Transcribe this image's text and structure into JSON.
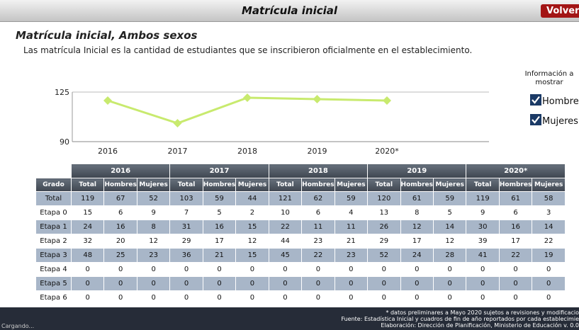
{
  "header": {
    "title": "Matrícula inicial",
    "back": "Volver"
  },
  "heading": "Matrícula inicial, Ambos sexos",
  "description": "Las matrícula Inicial es la cantidad de estudiantes que se inscribieron oficialmente en el establecimiento.",
  "chart_data": {
    "type": "line",
    "categories": [
      "2016",
      "2017",
      "2018",
      "2019",
      "2020*"
    ],
    "values": [
      119,
      103,
      121,
      120,
      119
    ],
    "color": "#c8ea6e",
    "ylim": [
      90,
      125
    ],
    "yticks": [
      90,
      125
    ],
    "grid": true
  },
  "controls": {
    "title": "Información a mostrar",
    "options": [
      {
        "label": "Hombres",
        "checked": true
      },
      {
        "label": "Mujeres",
        "checked": true
      }
    ]
  },
  "table": {
    "grado": "Grado",
    "years": [
      "2016",
      "2017",
      "2018",
      "2019",
      "2020*"
    ],
    "subheaders": [
      "Total",
      "Hombres",
      "Mujeres"
    ],
    "rows": [
      {
        "label": "Total",
        "values": [
          119,
          67,
          52,
          103,
          59,
          44,
          121,
          62,
          59,
          120,
          61,
          59,
          119,
          61,
          58
        ]
      },
      {
        "label": "Etapa 0",
        "values": [
          15,
          6,
          9,
          7,
          5,
          2,
          10,
          6,
          4,
          13,
          8,
          5,
          9,
          6,
          3
        ]
      },
      {
        "label": "Etapa 1",
        "values": [
          24,
          16,
          8,
          31,
          16,
          15,
          22,
          11,
          11,
          26,
          12,
          14,
          30,
          16,
          14
        ]
      },
      {
        "label": "Etapa 2",
        "values": [
          32,
          20,
          12,
          29,
          17,
          12,
          44,
          23,
          21,
          29,
          17,
          12,
          39,
          17,
          22
        ]
      },
      {
        "label": "Etapa 3",
        "values": [
          48,
          25,
          23,
          36,
          21,
          15,
          45,
          22,
          23,
          52,
          24,
          28,
          41,
          22,
          19
        ]
      },
      {
        "label": "Etapa 4",
        "values": [
          0,
          0,
          0,
          0,
          0,
          0,
          0,
          0,
          0,
          0,
          0,
          0,
          0,
          0,
          0
        ]
      },
      {
        "label": "Etapa 5",
        "values": [
          0,
          0,
          0,
          0,
          0,
          0,
          0,
          0,
          0,
          0,
          0,
          0,
          0,
          0,
          0
        ]
      },
      {
        "label": "Etapa 6",
        "values": [
          0,
          0,
          0,
          0,
          0,
          0,
          0,
          0,
          0,
          0,
          0,
          0,
          0,
          0,
          0
        ]
      }
    ]
  },
  "footer": {
    "notes": [
      "* datos preliminares a Mayo 2020 sujetos a revisiones y modificacio",
      "Fuente: Estadística Inicial y cuadros de fin de año reportados por cada establecimie",
      "Elaboración: Dirección de Planificación, Ministerio de Educación v. 0.0"
    ],
    "status": "Cargando..."
  }
}
